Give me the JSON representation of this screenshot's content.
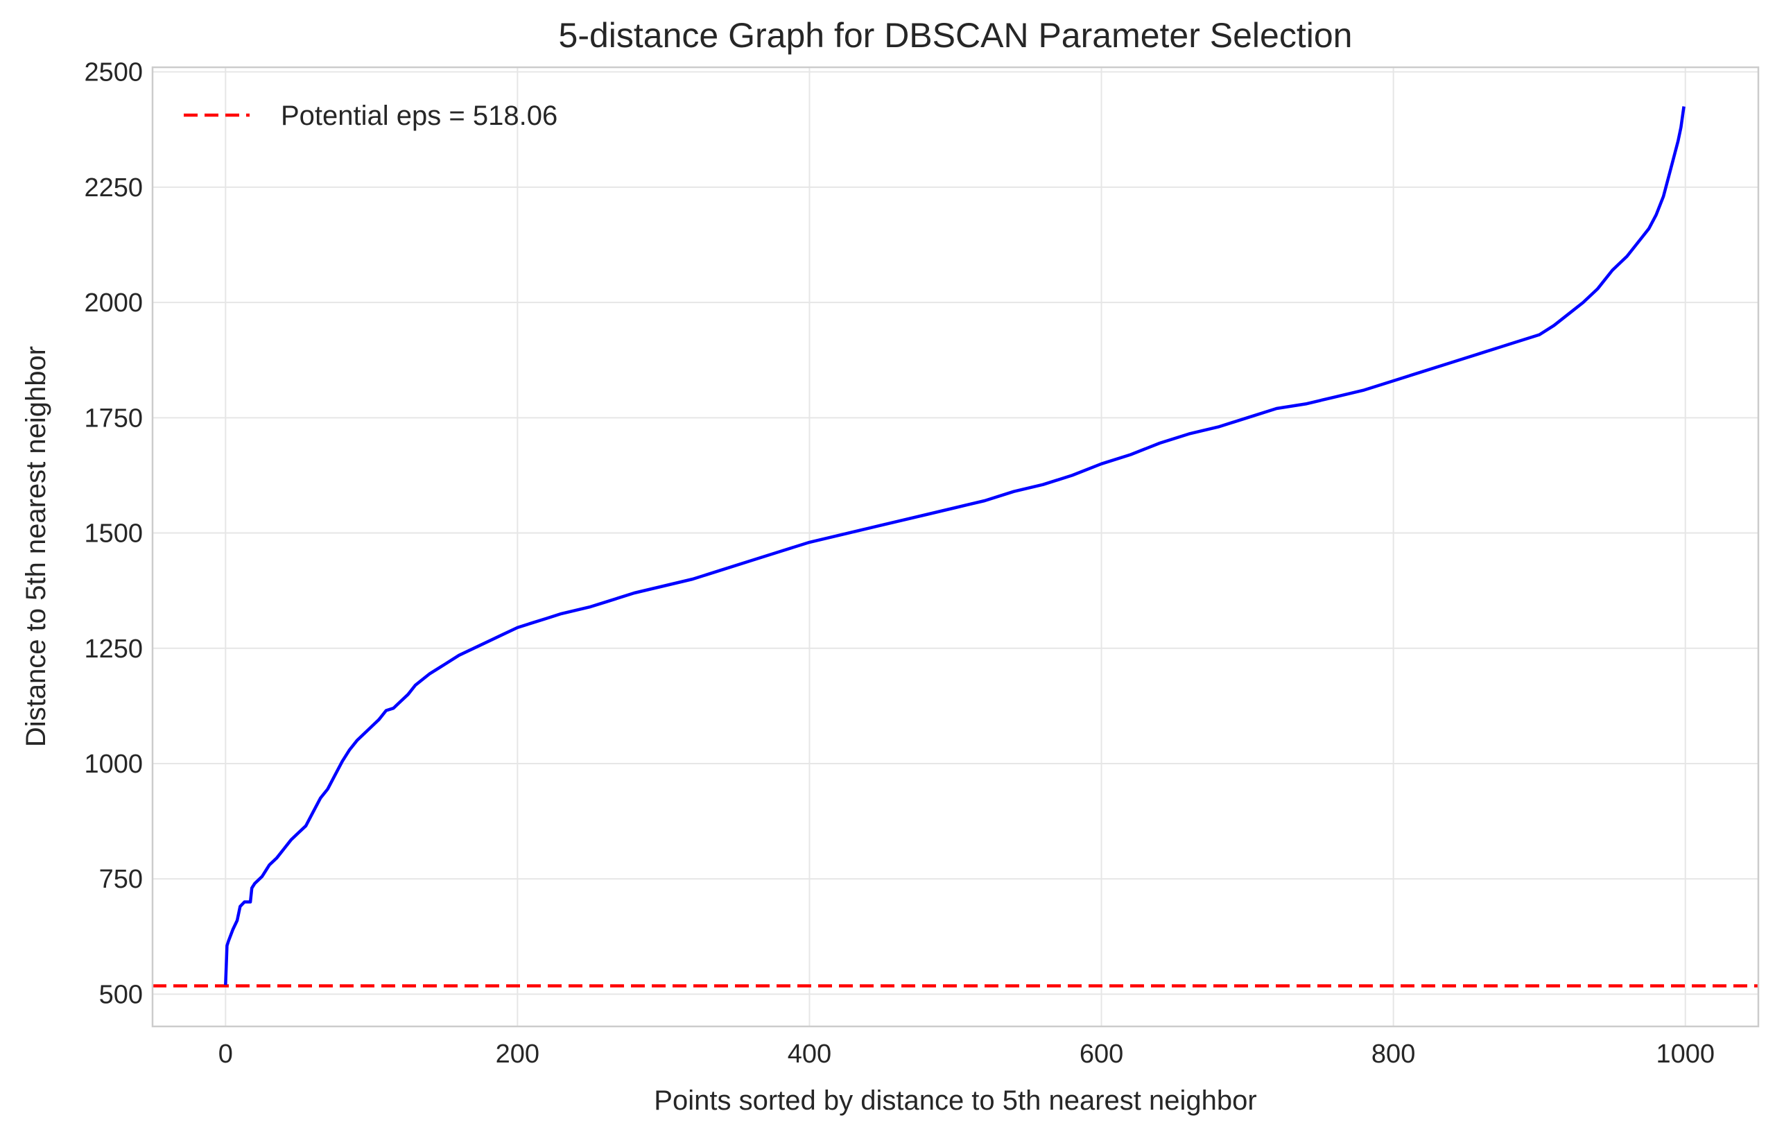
{
  "chart_data": {
    "type": "line",
    "title": "5-distance Graph for DBSCAN Parameter Selection",
    "xlabel": "Points sorted by distance to 5th nearest neighbor",
    "ylabel": "Distance to 5th nearest neighbor",
    "xlim": [
      -50,
      1050
    ],
    "ylim": [
      430,
      2510
    ],
    "xticks": [
      0,
      200,
      400,
      600,
      800,
      1000
    ],
    "yticks": [
      500,
      750,
      1000,
      1250,
      1500,
      1750,
      2000,
      2250,
      2500
    ],
    "grid": true,
    "legend_position": "top-left",
    "series": [
      {
        "color": "#0000ff",
        "x": [
          0,
          1,
          2,
          5,
          8,
          10,
          13,
          17,
          18,
          20,
          25,
          30,
          35,
          40,
          45,
          50,
          55,
          60,
          65,
          70,
          75,
          80,
          85,
          90,
          95,
          100,
          105,
          110,
          115,
          120,
          125,
          130,
          140,
          150,
          160,
          170,
          180,
          190,
          200,
          210,
          220,
          230,
          250,
          260,
          280,
          300,
          320,
          340,
          360,
          380,
          400,
          420,
          440,
          460,
          480,
          500,
          520,
          540,
          560,
          580,
          600,
          620,
          640,
          660,
          680,
          700,
          720,
          740,
          760,
          780,
          800,
          820,
          840,
          860,
          880,
          900,
          910,
          920,
          930,
          940,
          950,
          960,
          970,
          975,
          980,
          985,
          990,
          995,
          997,
          999
        ],
        "y": [
          520,
          605,
          615,
          640,
          660,
          690,
          700,
          700,
          730,
          740,
          755,
          780,
          795,
          815,
          835,
          850,
          865,
          895,
          925,
          945,
          975,
          1005,
          1030,
          1050,
          1065,
          1080,
          1095,
          1115,
          1120,
          1135,
          1150,
          1170,
          1195,
          1215,
          1235,
          1250,
          1265,
          1280,
          1295,
          1305,
          1315,
          1325,
          1340,
          1350,
          1370,
          1385,
          1400,
          1420,
          1440,
          1460,
          1480,
          1495,
          1510,
          1525,
          1540,
          1555,
          1570,
          1590,
          1605,
          1625,
          1650,
          1670,
          1695,
          1715,
          1730,
          1750,
          1770,
          1780,
          1795,
          1810,
          1830,
          1850,
          1870,
          1890,
          1910,
          1930,
          1950,
          1975,
          2000,
          2030,
          2070,
          2100,
          2140,
          2160,
          2190,
          2230,
          2290,
          2350,
          2380,
          2425
        ]
      }
    ],
    "reference_line": {
      "y": 518.06,
      "color": "#ff0000",
      "style": "dashed",
      "label": "Potential eps = 518.06"
    }
  }
}
